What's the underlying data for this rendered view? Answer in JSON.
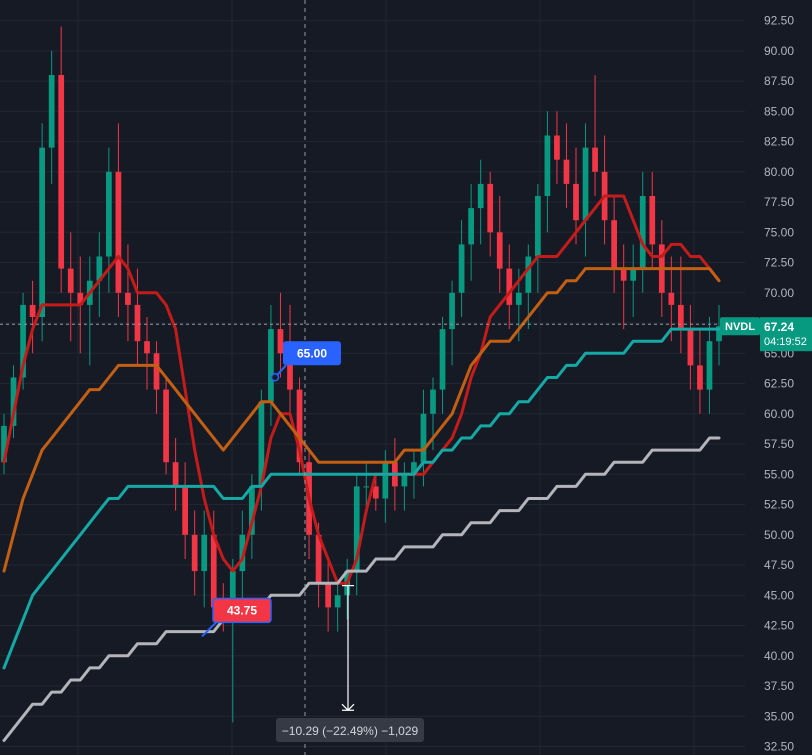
{
  "chart_data": {
    "type": "candlestick",
    "symbol": "NVDL",
    "ylim": [
      31.8,
      94.2
    ],
    "y_ticks": [
      "92.50",
      "90.00",
      "87.50",
      "85.00",
      "82.50",
      "80.00",
      "77.50",
      "75.00",
      "72.50",
      "70.00",
      "67.50",
      "65.00",
      "62.50",
      "60.00",
      "57.50",
      "55.00",
      "52.50",
      "50.00",
      "47.50",
      "45.00",
      "42.50",
      "40.00",
      "37.50",
      "35.00",
      "32.50"
    ],
    "last_price": {
      "label": "67.24",
      "value": 67.24,
      "countdown": "04:19:52"
    },
    "annotations": {
      "high_marker": {
        "label": "65.00",
        "value": 65.0
      },
      "low_marker": {
        "label": "43.75",
        "value": 43.75
      },
      "measure": {
        "label": "−10.29 (−22.49%) −1,029",
        "from_value": 45.8,
        "to_value": 35.5
      },
      "crosshair_value": 67.4
    },
    "series": [
      {
        "name": "",
        "type": "line",
        "color": "#c41b1b",
        "values": [
          56,
          60,
          64,
          67,
          69,
          69,
          69,
          69,
          69,
          70,
          71,
          72,
          73,
          72,
          70,
          70,
          70,
          69,
          67,
          62,
          57,
          53,
          50,
          48,
          47,
          48,
          51,
          54,
          58,
          60,
          60,
          57,
          53,
          50,
          48,
          46,
          46,
          48,
          52,
          55,
          55,
          55,
          55,
          55,
          55,
          56,
          57,
          58,
          60,
          63,
          65,
          68,
          69,
          70,
          71,
          72,
          73,
          73,
          73,
          74,
          75,
          76,
          77,
          78,
          78,
          78,
          76,
          74,
          73,
          73,
          74,
          74,
          73,
          73,
          72,
          71
        ]
      },
      {
        "name": "",
        "type": "line",
        "color": "#c25f12",
        "values": [
          47,
          50,
          53,
          55,
          57,
          58,
          59,
          60,
          61,
          62,
          62,
          63,
          64,
          64,
          64,
          64,
          64,
          63,
          62,
          61,
          60,
          59,
          58,
          57,
          58,
          59,
          60,
          61,
          61,
          60,
          59,
          58,
          57,
          56,
          56,
          56,
          56,
          56,
          56,
          56,
          56,
          56,
          57,
          57,
          57,
          58,
          59,
          60,
          62,
          64,
          65,
          66,
          66,
          66,
          67,
          68,
          69,
          70,
          70,
          71,
          71,
          72,
          72,
          72,
          72,
          72,
          72,
          72,
          72,
          72,
          72,
          72,
          72,
          72,
          72,
          71
        ]
      },
      {
        "name": "",
        "type": "line",
        "color": "#15a9a5",
        "values": [
          39,
          41,
          43,
          45,
          46,
          47,
          48,
          49,
          50,
          51,
          52,
          53,
          53,
          54,
          54,
          54,
          54,
          54,
          54,
          54,
          54,
          54,
          54,
          53,
          53,
          53,
          54,
          54,
          55,
          55,
          55,
          55,
          55,
          55,
          55,
          55,
          55,
          55,
          55,
          55,
          55,
          55,
          55,
          55,
          56,
          56,
          57,
          57,
          58,
          58,
          59,
          59,
          60,
          60,
          61,
          61,
          62,
          63,
          63,
          64,
          64,
          65,
          65,
          65,
          65,
          65,
          66,
          66,
          66,
          66,
          67,
          67,
          67,
          67,
          67,
          67
        ]
      },
      {
        "name": "",
        "type": "line",
        "color": "#b3b5ba",
        "values": [
          33,
          34,
          35,
          36,
          36,
          37,
          37,
          38,
          38,
          39,
          39,
          40,
          40,
          40,
          41,
          41,
          41,
          42,
          42,
          42,
          42,
          42,
          42,
          43,
          43,
          43,
          44,
          44,
          45,
          45,
          45,
          45,
          46,
          46,
          46,
          46,
          47,
          47,
          47,
          48,
          48,
          48,
          49,
          49,
          49,
          49,
          50,
          50,
          50,
          51,
          51,
          51,
          52,
          52,
          52,
          53,
          53,
          53,
          54,
          54,
          54,
          55,
          55,
          55,
          56,
          56,
          56,
          56,
          57,
          57,
          57,
          57,
          57,
          57,
          58,
          58
        ]
      }
    ],
    "candles": [
      [
        56,
        60,
        55,
        59
      ],
      [
        59,
        64,
        58,
        63
      ],
      [
        63,
        70,
        62,
        69
      ],
      [
        69,
        71,
        65,
        68
      ],
      [
        68,
        84,
        66,
        82
      ],
      [
        82,
        90,
        79,
        88
      ],
      [
        88,
        92,
        70,
        72
      ],
      [
        72,
        75,
        66,
        70
      ],
      [
        70,
        73,
        65,
        69
      ],
      [
        69,
        73,
        64,
        71
      ],
      [
        71,
        75,
        68,
        73
      ],
      [
        73,
        82,
        70,
        80
      ],
      [
        80,
        84,
        68,
        70
      ],
      [
        70,
        74,
        66,
        69
      ],
      [
        69,
        72,
        64,
        66
      ],
      [
        66,
        68,
        62,
        65
      ],
      [
        65,
        66,
        60,
        62
      ],
      [
        62,
        63,
        55,
        56
      ],
      [
        56,
        58,
        52,
        54
      ],
      [
        54,
        56,
        48,
        50
      ],
      [
        50,
        52,
        45,
        47
      ],
      [
        47,
        52,
        44,
        50
      ],
      [
        50,
        52,
        43,
        44
      ],
      [
        44,
        46,
        42,
        43.5
      ],
      [
        43.5,
        48,
        34.5,
        47
      ],
      [
        47,
        52,
        44,
        50
      ],
      [
        50,
        55,
        48,
        54
      ],
      [
        54,
        62,
        52,
        61
      ],
      [
        61,
        69,
        59,
        67
      ],
      [
        67,
        70,
        63,
        65
      ],
      [
        65,
        69,
        60,
        62
      ],
      [
        62,
        63,
        55,
        56
      ],
      [
        56,
        57,
        48,
        50
      ],
      [
        50,
        51,
        44,
        46
      ],
      [
        46,
        48,
        42,
        44
      ],
      [
        44,
        46,
        42,
        45
      ],
      [
        45,
        48,
        43,
        47
      ],
      [
        47,
        55,
        45,
        54
      ],
      [
        54,
        56,
        52,
        54
      ],
      [
        54,
        55,
        52,
        53
      ],
      [
        53,
        57,
        51,
        56
      ],
      [
        56,
        58,
        52,
        54
      ],
      [
        54,
        56,
        52,
        55
      ],
      [
        55,
        57,
        53,
        56
      ],
      [
        56,
        62,
        54,
        60
      ],
      [
        60,
        63,
        57,
        62
      ],
      [
        62,
        68,
        60,
        67
      ],
      [
        67,
        71,
        64,
        70
      ],
      [
        70,
        76,
        68,
        74
      ],
      [
        74,
        79,
        71,
        77
      ],
      [
        77,
        81,
        74,
        79
      ],
      [
        79,
        80,
        73,
        75
      ],
      [
        75,
        78,
        70,
        72
      ],
      [
        72,
        74,
        67,
        69
      ],
      [
        69,
        72,
        66,
        70
      ],
      [
        70,
        74,
        67,
        73
      ],
      [
        73,
        79,
        70,
        78
      ],
      [
        78,
        85,
        75,
        83
      ],
      [
        83,
        85,
        79,
        81
      ],
      [
        81,
        84,
        77,
        79
      ],
      [
        79,
        82,
        74,
        76
      ],
      [
        76,
        84,
        73,
        82
      ],
      [
        82,
        88,
        78,
        80
      ],
      [
        80,
        83,
        74,
        76
      ],
      [
        76,
        78,
        70,
        72
      ],
      [
        72,
        74,
        67,
        71
      ],
      [
        71,
        74,
        68,
        72
      ],
      [
        72,
        80,
        70,
        78
      ],
      [
        78,
        80,
        72,
        74
      ],
      [
        74,
        76,
        68,
        70
      ],
      [
        70,
        73,
        66,
        69
      ],
      [
        69,
        73,
        65,
        67
      ],
      [
        67,
        69,
        62,
        64
      ],
      [
        64,
        67,
        60,
        62
      ],
      [
        62,
        68,
        60,
        66
      ],
      [
        66,
        69,
        64,
        67.24
      ]
    ]
  }
}
